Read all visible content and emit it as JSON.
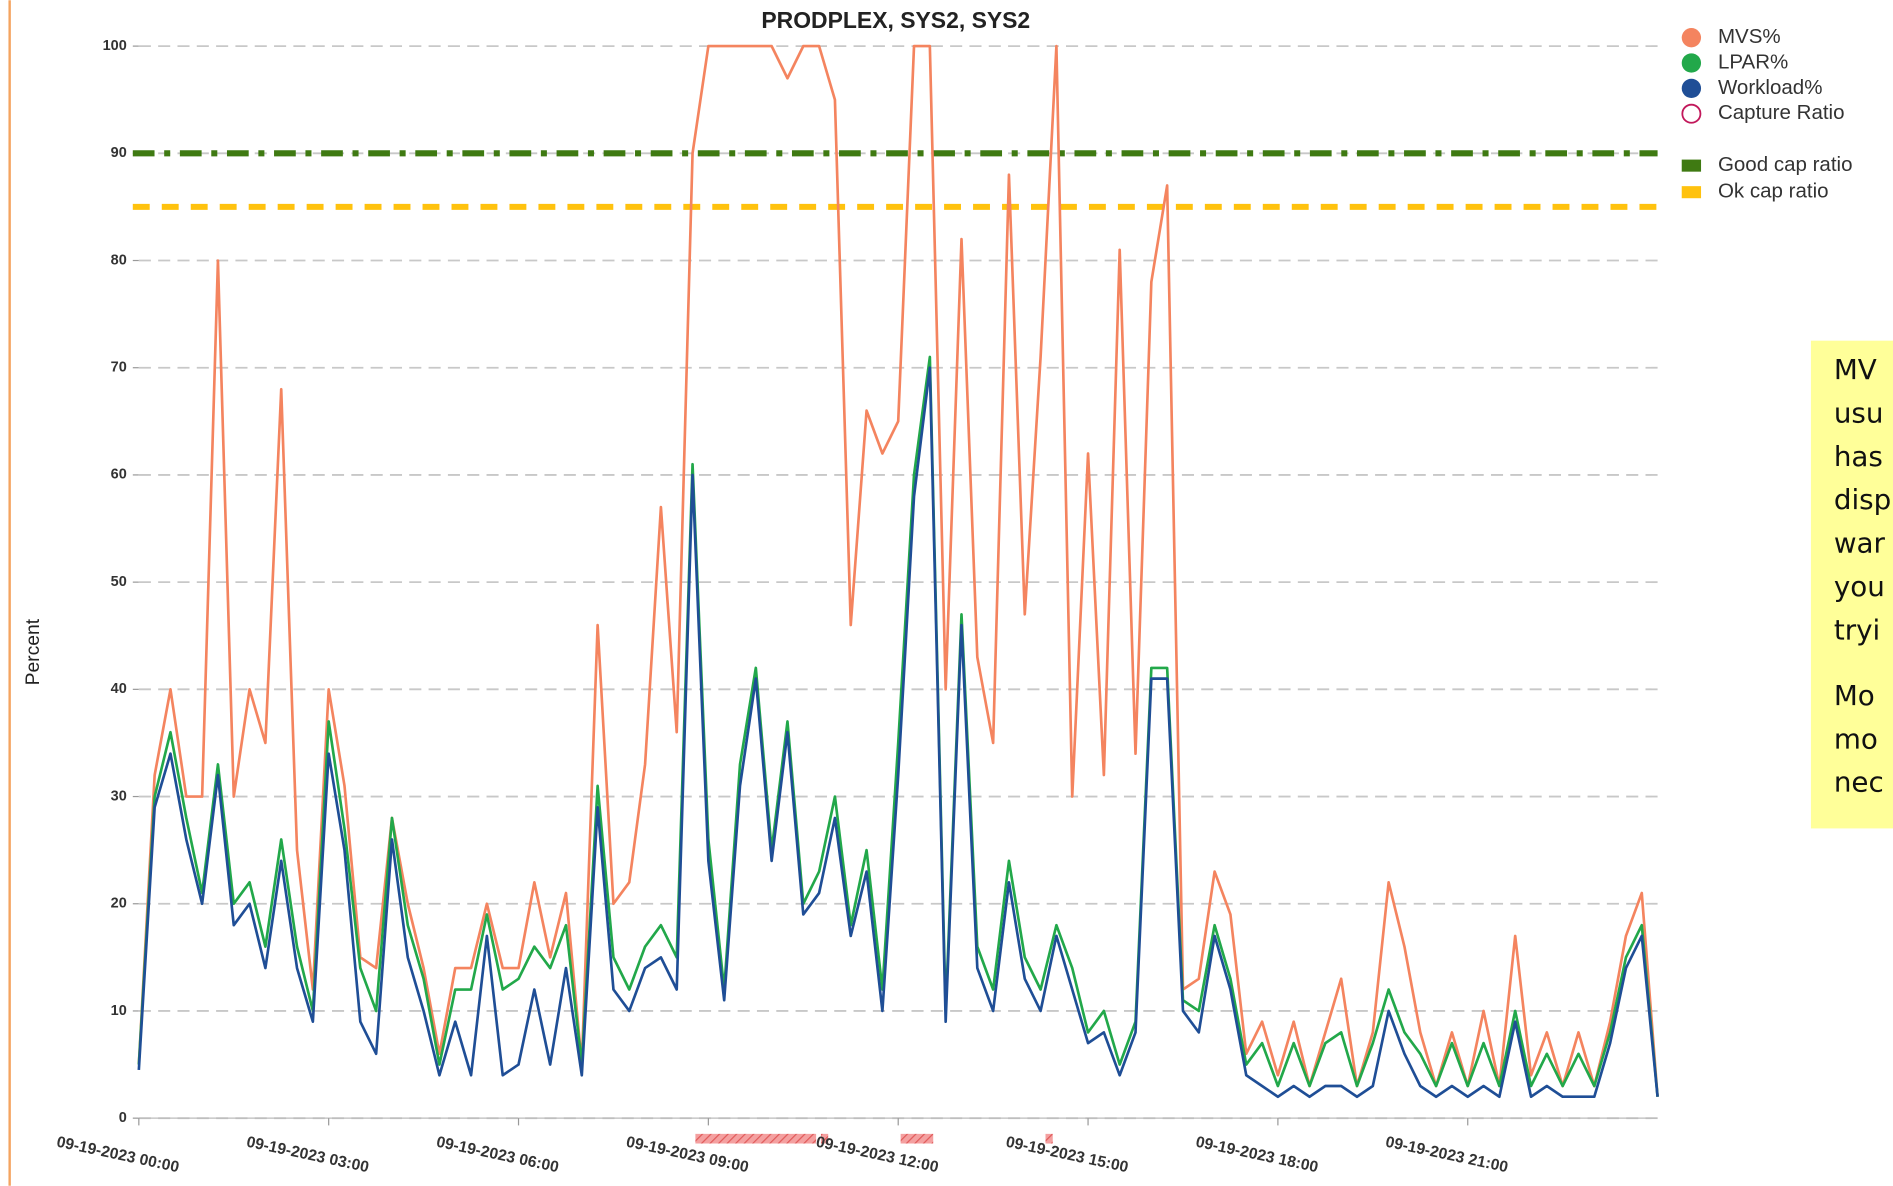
{
  "chart_data": {
    "type": "line",
    "title": "PRODPLEX, SYS2, SYS2",
    "ylabel": "Percent",
    "xlim": [
      0,
      24
    ],
    "xticks": [
      {
        "value": 0,
        "label": "09-19-2023 00:00"
      },
      {
        "value": 3,
        "label": "09-19-2023 03:00"
      },
      {
        "value": 6,
        "label": "09-19-2023 06:00"
      },
      {
        "value": 9,
        "label": "09-19-2023 09:00"
      },
      {
        "value": 12,
        "label": "09-19-2023 12:00"
      },
      {
        "value": 15,
        "label": "09-19-2023 15:00"
      },
      {
        "value": 18,
        "label": "09-19-2023 18:00"
      },
      {
        "value": 21,
        "label": "09-19-2023 21:00"
      }
    ],
    "ylim": [
      0,
      100
    ],
    "yticks": [
      0,
      10,
      20,
      30,
      40,
      50,
      60,
      70,
      80,
      90,
      100
    ],
    "grid": true,
    "x": [
      0,
      0.25,
      0.5,
      0.75,
      1,
      1.25,
      1.5,
      1.75,
      2,
      2.25,
      2.5,
      2.75,
      3,
      3.25,
      3.5,
      3.75,
      4,
      4.25,
      4.5,
      4.75,
      5,
      5.25,
      5.5,
      5.75,
      6,
      6.25,
      6.5,
      6.75,
      7,
      7.25,
      7.5,
      7.75,
      8,
      8.25,
      8.5,
      8.75,
      9,
      9.25,
      9.5,
      9.75,
      10,
      10.25,
      10.5,
      10.75,
      11,
      11.25,
      11.5,
      11.75,
      12,
      12.25,
      12.5,
      12.75,
      13,
      13.25,
      13.5,
      13.75,
      14,
      14.25,
      14.5,
      14.75,
      15,
      15.25,
      15.5,
      15.75,
      16,
      16.25,
      16.5,
      16.75,
      17,
      17.25,
      17.5,
      17.75,
      18,
      18.25,
      18.5,
      18.75,
      19,
      19.25,
      19.5,
      19.75,
      20,
      20.25,
      20.5,
      20.75,
      21,
      21.25,
      21.5,
      21.75,
      22,
      22.25,
      22.5,
      22.75,
      23,
      23.25,
      23.5,
      23.75,
      24
    ],
    "series": [
      {
        "name": "MVS%",
        "color": "#f4845f",
        "values": [
          5,
          32,
          40,
          30,
          30,
          80,
          30,
          40,
          35,
          68,
          25,
          12,
          40,
          31,
          15,
          14,
          28,
          20,
          14,
          6,
          14,
          14,
          20,
          14,
          14,
          22,
          15,
          21,
          5,
          46,
          20,
          22,
          33,
          57,
          36,
          90,
          100,
          100,
          100,
          100,
          100,
          97,
          100,
          100,
          95,
          46,
          66,
          62,
          65,
          100,
          100,
          40,
          82,
          43,
          35,
          88,
          47,
          71,
          100,
          30,
          62,
          32,
          81,
          34,
          78,
          87,
          12,
          13,
          23,
          19,
          6,
          9,
          4,
          9,
          3,
          8,
          13,
          3,
          8,
          22,
          16,
          8,
          3,
          8,
          3,
          10,
          3,
          17,
          4,
          8,
          3,
          8,
          3,
          9,
          17,
          21,
          2
        ]
      },
      {
        "name": "LPAR%",
        "color": "#22a84a",
        "values": [
          5,
          30,
          36,
          28,
          21,
          33,
          20,
          22,
          16,
          26,
          16,
          10,
          37,
          27,
          14,
          10,
          28,
          18,
          13,
          5,
          12,
          12,
          19,
          12,
          13,
          16,
          14,
          18,
          5,
          31,
          15,
          12,
          16,
          18,
          15,
          61,
          26,
          12,
          33,
          42,
          25,
          37,
          20,
          23,
          30,
          18,
          25,
          12,
          35,
          60,
          71,
          10,
          47,
          16,
          12,
          24,
          15,
          12,
          18,
          14,
          8,
          10,
          5,
          9,
          42,
          42,
          11,
          10,
          18,
          13,
          5,
          7,
          3,
          7,
          3,
          7,
          8,
          3,
          7,
          12,
          8,
          6,
          3,
          7,
          3,
          7,
          3,
          10,
          3,
          6,
          3,
          6,
          3,
          8,
          15,
          18,
          2
        ]
      },
      {
        "name": "Workload%",
        "color": "#1f4e96",
        "values": [
          4.5,
          29,
          34,
          26,
          20,
          32,
          18,
          20,
          14,
          24,
          14,
          9,
          34,
          25,
          9,
          6,
          26,
          15,
          10,
          4,
          9,
          4,
          17,
          4,
          5,
          12,
          5,
          14,
          4,
          29,
          12,
          10,
          14,
          15,
          12,
          60,
          24,
          11,
          31,
          41,
          24,
          36,
          19,
          21,
          28,
          17,
          23,
          10,
          32,
          58,
          70,
          9,
          46,
          14,
          10,
          22,
          13,
          10,
          17,
          12,
          7,
          8,
          4,
          8,
          41,
          41,
          10,
          8,
          17,
          12,
          4,
          3,
          2,
          3,
          2,
          3,
          3,
          2,
          3,
          10,
          6,
          3,
          2,
          3,
          2,
          3,
          2,
          9,
          2,
          3,
          2,
          2,
          2,
          7,
          14,
          17,
          2
        ]
      }
    ],
    "legend_only": [
      {
        "name": "Capture Ratio",
        "color": "#c2185b"
      }
    ],
    "reference_lines": [
      {
        "name": "Good cap ratio",
        "value": 90,
        "color": "#3f7a12",
        "style": "dashdot"
      },
      {
        "name": "Ok cap ratio",
        "value": 85,
        "color": "#ffc20e",
        "style": "dashed"
      }
    ],
    "legend": "right",
    "annotation": {
      "lines": [
        "MV",
        "usu",
        "has",
        "disp",
        "war",
        "you",
        "tryi",
        "Mo",
        "mo",
        "nec"
      ],
      "color": "#ffff99"
    }
  }
}
